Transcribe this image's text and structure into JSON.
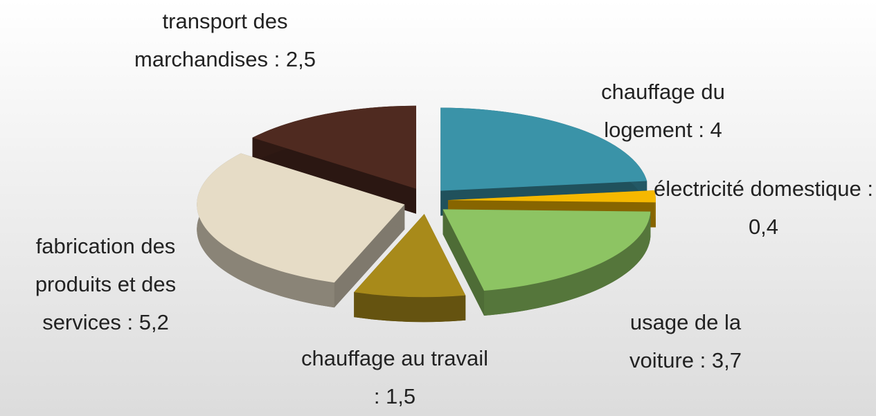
{
  "chart_data": {
    "type": "pie3d",
    "values": [
      4,
      0.4,
      3.7,
      1.5,
      5.2,
      2.5
    ],
    "value_labels": [
      "chauffage du logement : 4",
      "électricité domestique : 0,4",
      "usage de la voiture : 3,7",
      "chauffage au travail : 1,5",
      "fabrication des produits et des services : 5,2",
      "transport des marchandises : 2,5"
    ],
    "colors": [
      "#3a93a8",
      "#f5b800",
      "#8dc463",
      "#a88a1a",
      "#e6dcc6",
      "#4f2a20"
    ]
  }
}
